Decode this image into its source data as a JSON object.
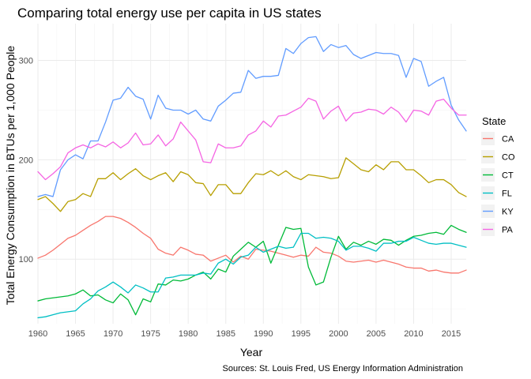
{
  "chart_data": {
    "type": "line",
    "title": "Comparing total energy use per capita in US states",
    "xlabel": "Year",
    "ylabel": "Total Energy Consumption in BTUs per 1,000 People",
    "caption": "Sources: St. Louis Fred, US Energy Information Administration",
    "legend_title": "State",
    "legend_position": "right",
    "xlim": [
      1960,
      2017
    ],
    "ylim": [
      35,
      337
    ],
    "x_ticks": [
      1960,
      1965,
      1970,
      1975,
      1980,
      1985,
      1990,
      1995,
      2000,
      2005,
      2010,
      2015
    ],
    "x_tick_labels": [
      "1960",
      "1965",
      "1970",
      "1975",
      "1980",
      "1985",
      "1990",
      "1995",
      "2000",
      "2005",
      "2010",
      "2015"
    ],
    "y_ticks": [
      100,
      200,
      300
    ],
    "y_tick_labels": [
      "100",
      "200",
      "300"
    ],
    "grid": true,
    "x": [
      1960,
      1961,
      1962,
      1963,
      1964,
      1965,
      1966,
      1967,
      1968,
      1969,
      1970,
      1971,
      1972,
      1973,
      1974,
      1975,
      1976,
      1977,
      1978,
      1979,
      1980,
      1981,
      1982,
      1983,
      1984,
      1985,
      1986,
      1987,
      1988,
      1989,
      1990,
      1991,
      1992,
      1993,
      1994,
      1995,
      1996,
      1997,
      1998,
      1999,
      2000,
      2001,
      2002,
      2003,
      2004,
      2005,
      2006,
      2007,
      2008,
      2009,
      2010,
      2011,
      2012,
      2013,
      2014,
      2015,
      2016,
      2017
    ],
    "series": [
      {
        "name": "CA",
        "color": "#F8766D",
        "values": [
          101,
          104,
          109,
          115,
          121,
          124,
          129,
          134,
          138,
          143,
          143,
          141,
          137,
          132,
          126,
          121,
          110,
          106,
          104,
          112,
          109,
          105,
          104,
          98,
          101,
          104,
          97,
          103,
          100,
          110,
          109,
          108,
          106,
          104,
          102,
          104,
          103,
          112,
          107,
          106,
          103,
          98,
          97,
          98,
          99,
          97,
          99,
          97,
          95,
          92,
          91,
          91,
          88,
          89,
          87,
          86,
          86,
          89
        ]
      },
      {
        "name": "CO",
        "color": "#B79F00",
        "values": [
          160,
          163,
          156,
          148,
          158,
          160,
          166,
          163,
          181,
          181,
          187,
          180,
          186,
          191,
          184,
          180,
          184,
          187,
          178,
          188,
          185,
          177,
          176,
          164,
          175,
          175,
          166,
          166,
          177,
          186,
          185,
          189,
          184,
          189,
          183,
          180,
          185,
          184,
          183,
          181,
          182,
          202,
          196,
          190,
          188,
          195,
          190,
          198,
          198,
          190,
          190,
          184,
          177,
          180,
          180,
          175,
          167,
          163
        ]
      },
      {
        "name": "CT",
        "color": "#00BA38",
        "values": [
          58,
          60,
          61,
          62,
          63,
          65,
          69,
          63,
          64,
          59,
          56,
          65,
          59,
          44,
          60,
          57,
          75,
          74,
          79,
          78,
          80,
          84,
          87,
          80,
          90,
          87,
          103,
          110,
          117,
          112,
          118,
          96,
          114,
          132,
          130,
          131,
          92,
          74,
          77,
          102,
          123,
          110,
          117,
          114,
          118,
          115,
          120,
          119,
          114,
          119,
          123,
          124,
          126,
          127,
          125,
          134,
          130,
          127
        ]
      },
      {
        "name": "FL",
        "color": "#00BFC4",
        "values": [
          41,
          42,
          44,
          46,
          47,
          48,
          55,
          60,
          68,
          72,
          77,
          72,
          66,
          74,
          71,
          67,
          67,
          81,
          82,
          84,
          84,
          84,
          86,
          85,
          96,
          100,
          95,
          102,
          104,
          112,
          107,
          110,
          113,
          111,
          112,
          126,
          126,
          121,
          122,
          121,
          118,
          109,
          113,
          113,
          111,
          108,
          116,
          116,
          118,
          118,
          122,
          119,
          116,
          115,
          116,
          116,
          114,
          112
        ]
      },
      {
        "name": "KY",
        "color": "#619CFF",
        "values": [
          163,
          165,
          163,
          190,
          200,
          205,
          201,
          219,
          219,
          238,
          260,
          262,
          273,
          264,
          261,
          241,
          265,
          252,
          250,
          250,
          246,
          250,
          241,
          239,
          254,
          260,
          267,
          268,
          290,
          282,
          284,
          284,
          285,
          312,
          307,
          317,
          323,
          324,
          309,
          316,
          313,
          315,
          306,
          302,
          305,
          308,
          307,
          307,
          305,
          283,
          302,
          299,
          274,
          279,
          283,
          255,
          240,
          229
        ]
      },
      {
        "name": "PA",
        "color": "#F564E3",
        "values": [
          188,
          180,
          186,
          193,
          207,
          212,
          215,
          212,
          216,
          213,
          218,
          212,
          217,
          227,
          215,
          216,
          225,
          214,
          221,
          238,
          229,
          220,
          198,
          197,
          216,
          212,
          212,
          214,
          225,
          229,
          239,
          233,
          244,
          245,
          249,
          253,
          262,
          259,
          241,
          249,
          254,
          239,
          247,
          248,
          251,
          250,
          246,
          253,
          248,
          238,
          250,
          249,
          245,
          259,
          261,
          252,
          245,
          245
        ]
      }
    ]
  }
}
